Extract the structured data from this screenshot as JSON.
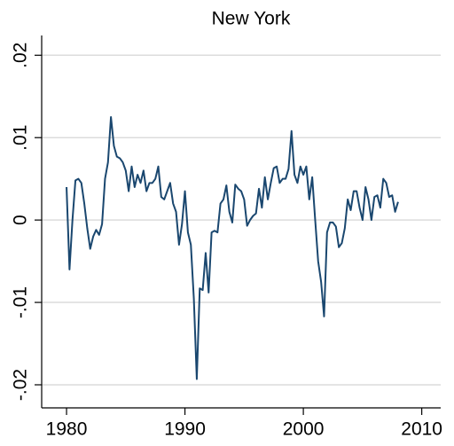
{
  "chart_data": {
    "type": "line",
    "title": "New York",
    "x": [
      1980,
      1980.25,
      1980.5,
      1980.75,
      1981,
      1981.25,
      1981.5,
      1981.75,
      1982,
      1982.25,
      1982.5,
      1982.75,
      1983,
      1983.25,
      1983.5,
      1983.75,
      1984,
      1984.25,
      1984.5,
      1984.75,
      1985,
      1985.25,
      1985.5,
      1985.75,
      1986,
      1986.25,
      1986.5,
      1986.75,
      1987,
      1987.25,
      1987.5,
      1987.75,
      1988,
      1988.25,
      1988.5,
      1988.75,
      1989,
      1989.25,
      1989.5,
      1989.75,
      1990,
      1990.25,
      1990.5,
      1990.75,
      1991,
      1991.25,
      1991.5,
      1991.75,
      1992,
      1992.25,
      1992.5,
      1992.75,
      1993,
      1993.25,
      1993.5,
      1993.75,
      1994,
      1994.25,
      1994.5,
      1994.75,
      1995,
      1995.25,
      1995.5,
      1995.75,
      1996,
      1996.25,
      1996.5,
      1996.75,
      1997,
      1997.25,
      1997.5,
      1997.75,
      1998,
      1998.25,
      1998.5,
      1998.75,
      1999,
      1999.25,
      1999.5,
      1999.75,
      2000,
      2000.25,
      2000.5,
      2000.75,
      2001,
      2001.25,
      2001.5,
      2001.75,
      2002,
      2002.25,
      2002.5,
      2002.75,
      2003,
      2003.25,
      2003.5,
      2003.75,
      2004,
      2004.25,
      2004.5,
      2004.75,
      2005,
      2005.25,
      2005.5,
      2005.75,
      2006,
      2006.25,
      2006.5,
      2006.75,
      2007,
      2007.25,
      2007.5,
      2007.75,
      2008
    ],
    "series": [
      {
        "color": "#1a476f",
        "values": [
          0.004,
          -0.006,
          0.0,
          0.0048,
          0.005,
          0.0045,
          0.002,
          -0.001,
          -0.0035,
          -0.002,
          -0.0012,
          -0.0018,
          -0.0005,
          0.005,
          0.007,
          0.0125,
          0.009,
          0.0077,
          0.0075,
          0.007,
          0.006,
          0.0035,
          0.0065,
          0.004,
          0.0055,
          0.0045,
          0.006,
          0.0035,
          0.0045,
          0.0045,
          0.005,
          0.0065,
          0.0028,
          0.0025,
          0.0035,
          0.0045,
          0.002,
          0.001,
          -0.003,
          -0.0005,
          0.0035,
          -0.0015,
          -0.003,
          -0.0095,
          -0.0193,
          -0.0083,
          -0.0085,
          -0.004,
          -0.0088,
          -0.0015,
          -0.0013,
          -0.0015,
          0.002,
          0.0025,
          0.0042,
          0.001,
          -0.0003,
          0.0043,
          0.0038,
          0.0035,
          0.0025,
          -0.0007,
          0.0,
          0.0005,
          0.0008,
          0.0038,
          0.0015,
          0.0052,
          0.0025,
          0.0045,
          0.0063,
          0.0065,
          0.0045,
          0.005,
          0.005,
          0.0062,
          0.0108,
          0.0055,
          0.0045,
          0.0065,
          0.0055,
          0.0065,
          0.0025,
          0.0052,
          0.0,
          -0.005,
          -0.0075,
          -0.0117,
          -0.0015,
          -0.0003,
          -0.0003,
          -0.0008,
          -0.0033,
          -0.0028,
          -0.001,
          0.0025,
          0.0012,
          0.0035,
          0.0035,
          0.0015,
          0.0,
          0.004,
          0.0025,
          0.0,
          0.0028,
          0.003,
          0.0015,
          0.005,
          0.0045,
          0.0028,
          0.003,
          0.001,
          0.0022
        ]
      }
    ],
    "xlim": [
      1977.9,
      2011.6
    ],
    "xticks": [
      1980,
      1990,
      2000,
      2010
    ],
    "ylim": [
      -0.0228,
      0.0224
    ],
    "yticks": [
      {
        "value": -0.02,
        "label": "-.02"
      },
      {
        "value": -0.01,
        "label": "-.01"
      },
      0,
      {
        "value": 0.01,
        "label": ".01"
      },
      {
        "value": 0.02,
        "label": ".02"
      }
    ],
    "grid": true
  }
}
